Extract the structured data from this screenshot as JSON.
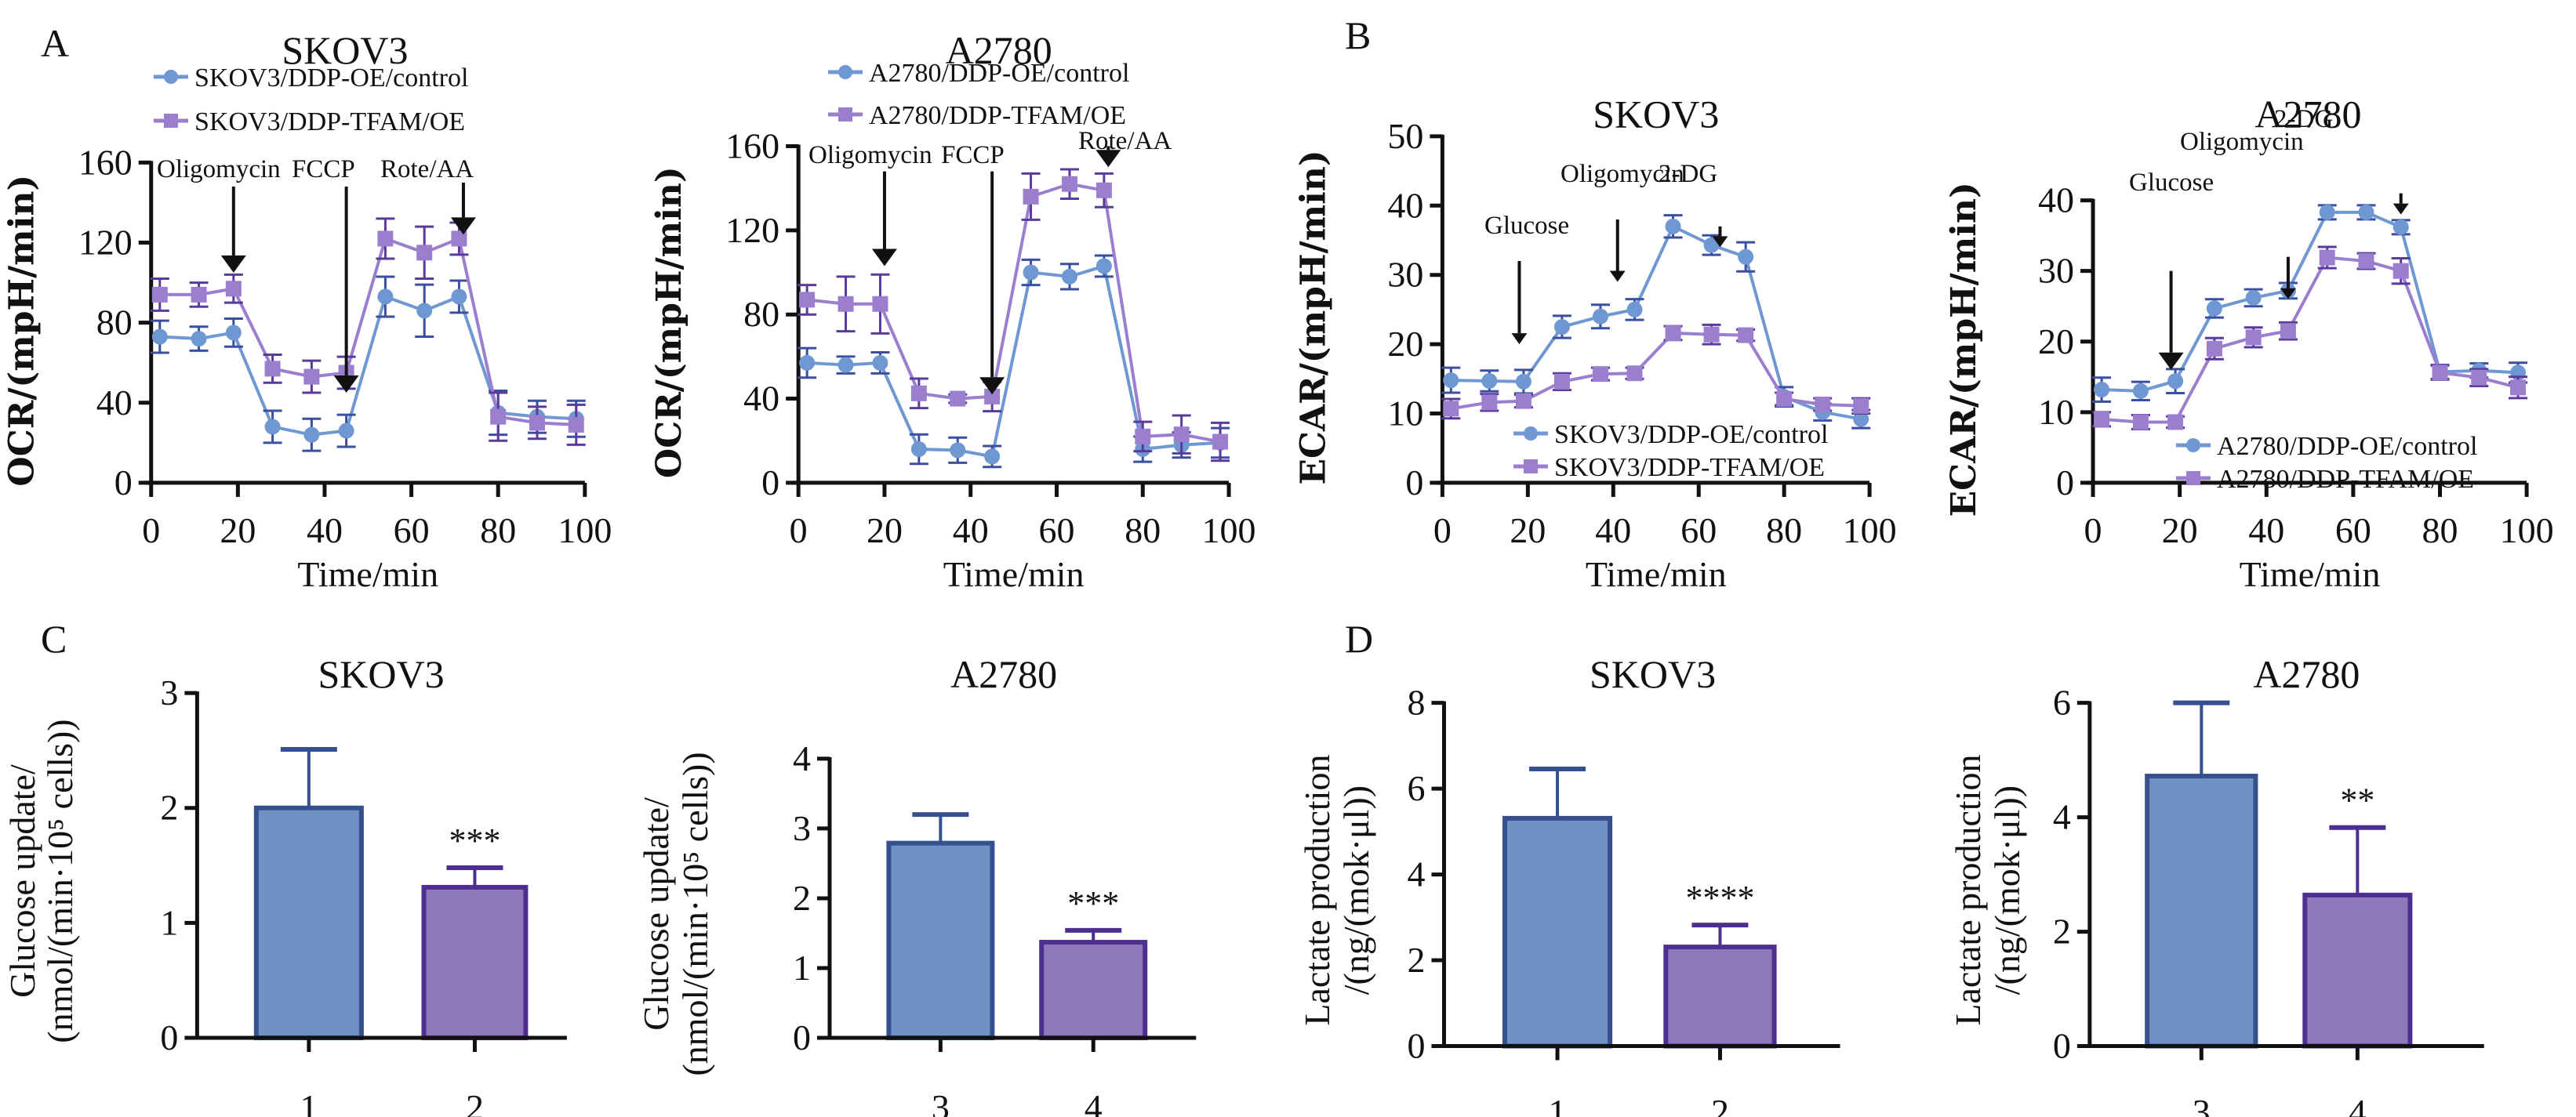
{
  "figure": {
    "panel_letters": [
      "A",
      "B",
      "C",
      "D"
    ],
    "colors": {
      "control_line": "#6f98d2",
      "control_marker": "#6f98d2",
      "control_error": "#3a4fa0",
      "tfam_line": "#9b7fce",
      "tfam_marker": "#9b7fce",
      "tfam_error": "#5a3a9a",
      "bar_blue_fill": "#7191c5",
      "bar_blue_edge": "#34508f",
      "bar_purple_fill": "#8e79ba",
      "bar_purple_edge": "#4e2e8e",
      "axis": "#111111"
    }
  },
  "chart_data": [
    {
      "id": "A-SKOV3",
      "panel": "A",
      "type": "line",
      "title": "SKOV3",
      "xlabel": "Time/min",
      "ylabel": "OCR/(mpH/min)",
      "xlim": [
        0,
        100
      ],
      "ylim": [
        0,
        160
      ],
      "xticks": [
        0,
        20,
        40,
        60,
        80,
        100
      ],
      "yticks": [
        0,
        40,
        80,
        120,
        160
      ],
      "grid": false,
      "legend_position": "top",
      "x": [
        2,
        11,
        19,
        28,
        37,
        45,
        54,
        63,
        71,
        80,
        89,
        98
      ],
      "series": [
        {
          "name": "SKOV3/DDP-OE/control",
          "marker": "circle",
          "color_key": "control",
          "values": [
            73,
            72,
            75,
            28,
            24,
            26,
            93,
            86,
            93,
            35,
            33,
            32
          ],
          "errors": [
            8,
            6,
            7,
            8,
            8,
            8,
            10,
            13,
            8,
            11,
            8,
            9
          ]
        },
        {
          "name": "SKOV3/DDP-TFAM/OE",
          "marker": "square",
          "color_key": "tfam",
          "values": [
            94,
            94,
            97,
            57,
            53,
            55,
            122,
            115,
            122,
            33,
            30,
            29
          ],
          "errors": [
            8,
            6,
            7,
            7,
            8,
            8,
            10,
            13,
            8,
            12,
            8,
            10
          ]
        }
      ],
      "annotations": [
        {
          "text": "Oligomycin",
          "arrow_x": 19
        },
        {
          "text": "FCCP",
          "arrow_x": 45
        },
        {
          "text": "Rote/AA",
          "arrow_x": 72
        }
      ]
    },
    {
      "id": "A-A2780",
      "panel": "A",
      "type": "line",
      "title": "A2780",
      "xlabel": "Time/min",
      "ylabel": "OCR/(mpH/min)",
      "xlim": [
        0,
        100
      ],
      "ylim": [
        0,
        160
      ],
      "xticks": [
        0,
        20,
        40,
        60,
        80,
        100
      ],
      "yticks": [
        0,
        40,
        80,
        120,
        160
      ],
      "grid": false,
      "legend_position": "top",
      "x": [
        2,
        11,
        19,
        28,
        37,
        45,
        54,
        63,
        71,
        80,
        89,
        98
      ],
      "series": [
        {
          "name": "A2780/DDP-OE/control",
          "marker": "circle",
          "color_key": "control",
          "values": [
            57,
            56,
            57,
            16,
            15.5,
            12.5,
            100,
            98,
            103,
            16,
            18,
            19
          ],
          "errors": [
            7,
            4,
            5,
            7,
            6,
            5,
            6,
            6,
            5,
            6,
            6,
            7
          ]
        },
        {
          "name": "A2780/DDP-TFAM/OE",
          "marker": "square",
          "color_key": "tfam",
          "values": [
            87,
            85,
            85,
            42.5,
            40,
            41,
            136,
            142,
            139,
            22,
            23,
            19.5
          ],
          "errors": [
            7,
            13,
            14,
            7,
            2,
            7,
            11,
            7,
            8,
            7,
            9,
            9
          ]
        }
      ],
      "annotations": [
        {
          "text": "Oligomycin",
          "arrow_x": 20
        },
        {
          "text": "FCCP",
          "arrow_x": 45
        },
        {
          "text": "Rote/AA",
          "arrow_x": 72
        }
      ]
    },
    {
      "id": "B-SKOV3",
      "panel": "B",
      "type": "line",
      "title": "SKOV3",
      "xlabel": "Time/min",
      "ylabel": "ECAR/(mpH/min)",
      "xlim": [
        0,
        100
      ],
      "ylim": [
        0,
        50
      ],
      "xticks": [
        0,
        20,
        40,
        60,
        80,
        100
      ],
      "yticks": [
        0,
        10,
        20,
        30,
        40,
        50
      ],
      "grid": false,
      "legend_position": "bottom-center",
      "x": [
        2,
        11,
        19,
        28,
        37,
        45,
        54,
        63,
        71,
        80,
        89,
        98
      ],
      "series": [
        {
          "name": "SKOV3/DDP-OE/control",
          "marker": "circle",
          "color_key": "control",
          "values": [
            14.8,
            14.7,
            14.6,
            22.5,
            24,
            25,
            37,
            34.3,
            32.6,
            12.4,
            10.2,
            9.2
          ],
          "errors": [
            1.8,
            1.5,
            1.7,
            1.6,
            1.7,
            1.5,
            1.6,
            1.4,
            2.1,
            1.4,
            1.2,
            1.3
          ]
        },
        {
          "name": "SKOV3/DDP-TFAM/OE",
          "marker": "square",
          "color_key": "tfam",
          "values": [
            10.7,
            11.6,
            11.8,
            14.6,
            15.7,
            15.8,
            21.6,
            21.4,
            21.3,
            12.1,
            11.3,
            11.1
          ],
          "errors": [
            1.4,
            1.2,
            0.9,
            1.2,
            0.9,
            0.8,
            1.0,
            1.4,
            0.8,
            0.9,
            0.9,
            1.1
          ]
        }
      ],
      "annotations": [
        {
          "text": "Glucose",
          "arrow_x": 18
        },
        {
          "text": "Oligomycin",
          "arrow_x": 41
        },
        {
          "text": "2-DG",
          "arrow_x": 65
        }
      ]
    },
    {
      "id": "B-A2780",
      "panel": "B",
      "type": "line",
      "title": "A2780",
      "xlabel": "Time/min",
      "ylabel": "ECAR/(mpH/min)",
      "xlim": [
        0,
        100
      ],
      "ylim": [
        0,
        40
      ],
      "xticks": [
        0,
        20,
        40,
        60,
        80,
        100
      ],
      "yticks": [
        0,
        10,
        20,
        30,
        40
      ],
      "grid": false,
      "legend_position": "bottom-right",
      "x": [
        2,
        11,
        19,
        28,
        37,
        45,
        54,
        63,
        71,
        80,
        89,
        98
      ],
      "series": [
        {
          "name": "A2780/DDP-OE/control",
          "marker": "circle",
          "color_key": "control",
          "values": [
            13.2,
            13,
            14.4,
            24.7,
            26.2,
            27.2,
            38.3,
            38.3,
            36.2,
            15.7,
            15.9,
            15.6
          ],
          "errors": [
            1.7,
            1.3,
            1.7,
            1.3,
            1.2,
            1.1,
            1.0,
            1.0,
            1.0,
            1.0,
            1.0,
            1.4
          ]
        },
        {
          "name": "A2780/DDP-TFAM/OE",
          "marker": "square",
          "color_key": "tfam",
          "values": [
            9,
            8.6,
            8.6,
            19,
            20.6,
            21.5,
            31.9,
            31.4,
            30,
            15.6,
            14.9,
            13.5
          ],
          "errors": [
            1.0,
            1.0,
            0.8,
            1.5,
            1.4,
            1.2,
            1.5,
            1.1,
            1.8,
            1.0,
            1.2,
            1.5
          ]
        }
      ],
      "annotations": [
        {
          "text": "Glucose",
          "arrow_x": 18
        },
        {
          "text": "Oligomycin",
          "arrow_x": 45
        },
        {
          "text": "2-DG",
          "arrow_x": 71
        }
      ]
    },
    {
      "id": "C-SKOV3",
      "panel": "C",
      "type": "bar",
      "title": "SKOV3",
      "xlabel": "",
      "ylabel": "Glucose update/",
      "ylabel2": "(nmol/(min·10⁵ cells))",
      "ylim": [
        0,
        3
      ],
      "yticks": [
        0,
        1,
        2,
        3
      ],
      "grid": false,
      "categories": [
        "1",
        "2"
      ],
      "values": [
        2.0,
        1.31
      ],
      "errors": [
        0.51,
        0.17
      ],
      "bar_colors": [
        "blue",
        "purple"
      ],
      "significance": [
        "",
        "***"
      ]
    },
    {
      "id": "C-A2780",
      "panel": "C",
      "type": "bar",
      "title": "A2780",
      "xlabel": "",
      "ylabel": "Glucose update/",
      "ylabel2": "(nmol/(min·10⁵ cells))",
      "ylim": [
        0,
        4
      ],
      "yticks": [
        0,
        1,
        2,
        3,
        4
      ],
      "grid": false,
      "categories": [
        "3",
        "4"
      ],
      "values": [
        2.79,
        1.37
      ],
      "errors": [
        0.41,
        0.17
      ],
      "bar_colors": [
        "blue",
        "purple"
      ],
      "significance": [
        "",
        "***"
      ]
    },
    {
      "id": "D-SKOV3",
      "panel": "D",
      "type": "bar",
      "title": "SKOV3",
      "xlabel": "",
      "ylabel": "Lactate production",
      "ylabel2": "/(ng/(mok·μl))",
      "ylim": [
        0,
        8
      ],
      "yticks": [
        0,
        2,
        4,
        6,
        8
      ],
      "grid": false,
      "categories": [
        "1",
        "2"
      ],
      "values": [
        5.31,
        2.31
      ],
      "errors": [
        1.15,
        0.51
      ],
      "bar_colors": [
        "blue",
        "purple"
      ],
      "significance": [
        "",
        "****"
      ]
    },
    {
      "id": "D-A2780",
      "panel": "D",
      "type": "bar",
      "title": "A2780",
      "xlabel": "",
      "ylabel": "Lactate production",
      "ylabel2": "/(ng/(mok·μl))",
      "ylim": [
        0,
        6
      ],
      "yticks": [
        0,
        2,
        4,
        6
      ],
      "grid": false,
      "categories": [
        "3",
        "4"
      ],
      "values": [
        4.72,
        2.64
      ],
      "errors": [
        1.28,
        1.18
      ],
      "bar_colors": [
        "blue",
        "purple"
      ],
      "significance": [
        "",
        "**"
      ]
    }
  ]
}
